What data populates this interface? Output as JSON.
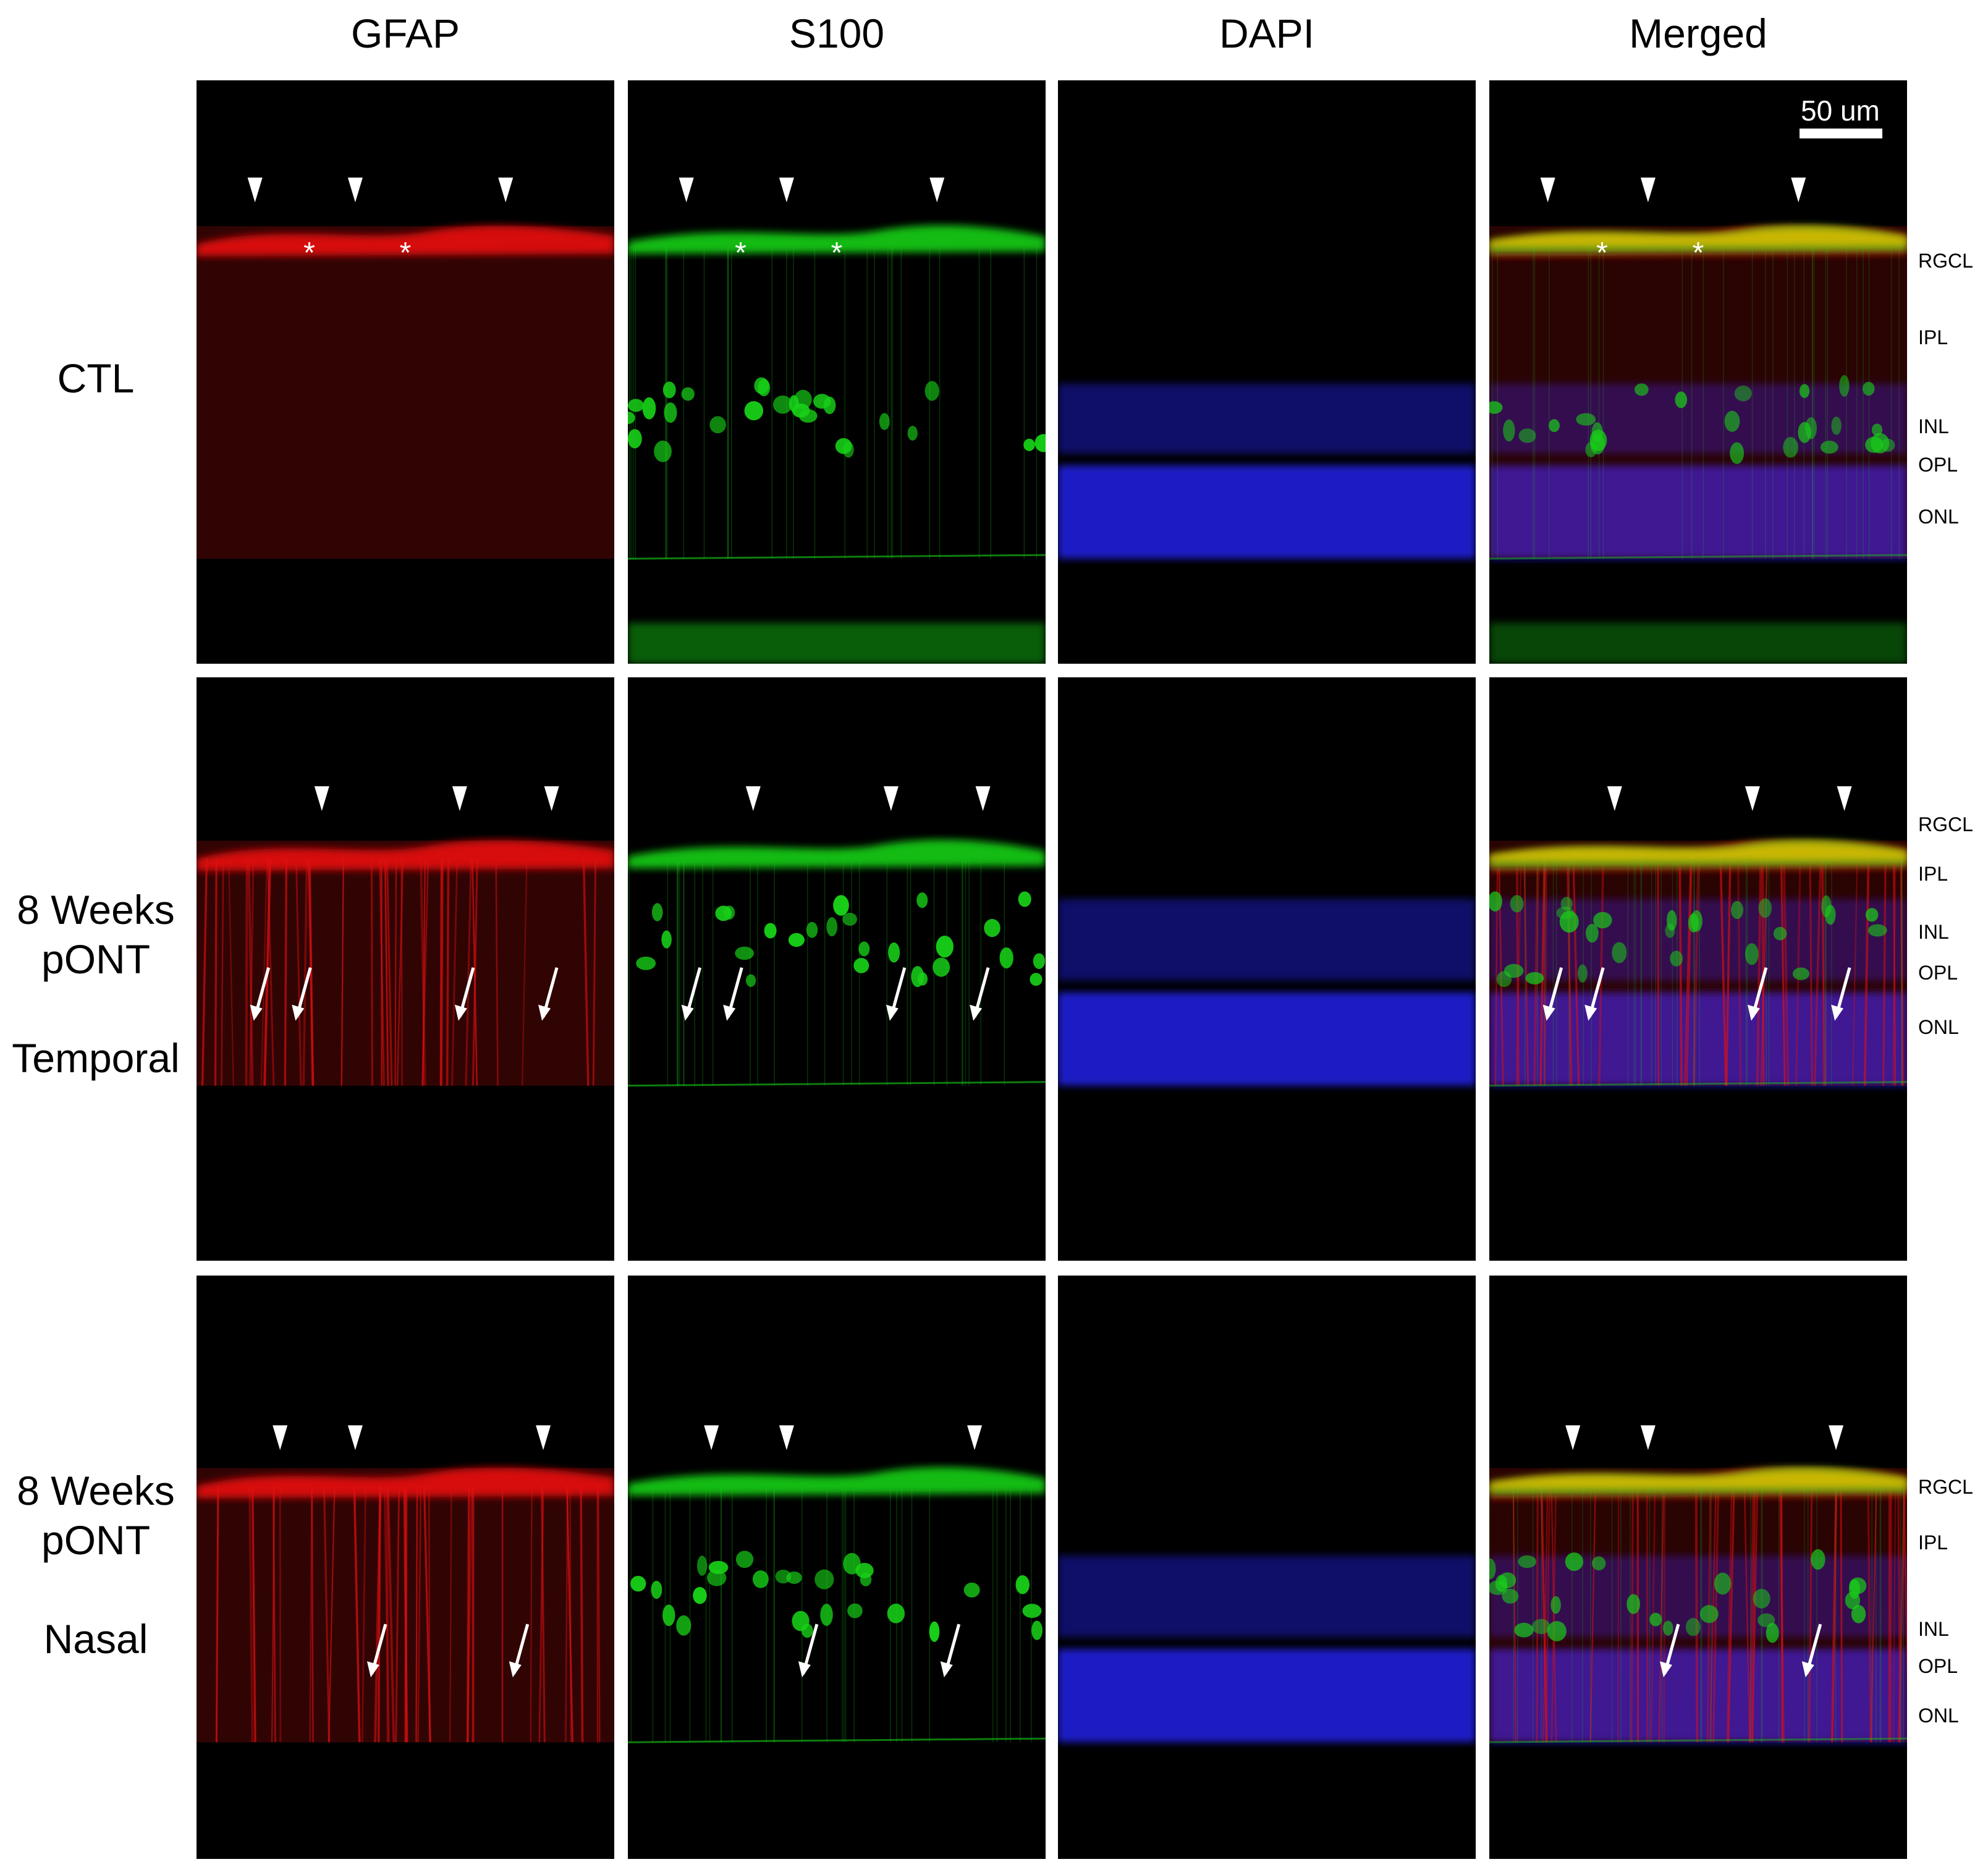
{
  "columns": [
    {
      "title": "GFAP",
      "channel": "red"
    },
    {
      "title": "S100",
      "channel": "green"
    },
    {
      "title": "DAPI",
      "channel": "blue"
    },
    {
      "title": "Merged",
      "channel": "merged"
    }
  ],
  "rows": [
    {
      "label_lines": [
        "CTL"
      ],
      "group": "",
      "layer_labels": [
        "RGCL",
        "IPL",
        "INL",
        "OPL",
        "ONL"
      ]
    },
    {
      "label_lines": [
        "8 Weeks",
        "pONT"
      ],
      "group": "Temporal",
      "layer_labels": [
        "RGCL",
        "IPL",
        "INL",
        "OPL",
        "ONL"
      ]
    },
    {
      "label_lines": [
        "8 Weeks",
        "pONT"
      ],
      "group": "Nasal",
      "layer_labels": [
        "RGCL",
        "IPL",
        "INL",
        "OPL",
        "ONL"
      ]
    }
  ],
  "scale_bar": {
    "label": "50 um"
  },
  "annotations": {
    "asterisk": "*",
    "arrowhead_marker": "arrowhead-icon",
    "arrow_marker": "arrow-icon"
  },
  "colors": {
    "gfap": "#e01010",
    "s100": "#18d018",
    "dapi": "#2020e8",
    "merged_overlap": "#e8c000",
    "background": "#000000",
    "marker": "#ffffff"
  }
}
